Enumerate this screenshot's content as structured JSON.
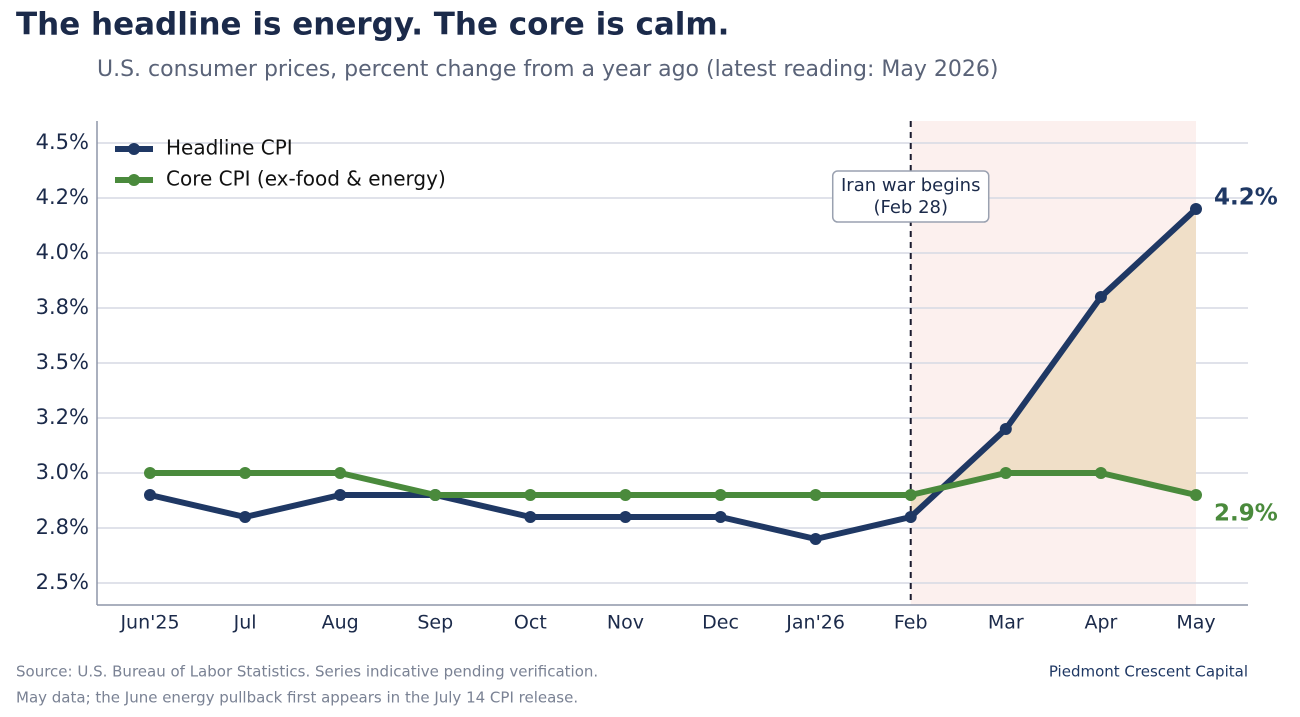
{
  "chart_data": {
    "type": "line",
    "title": "The headline is energy. The core is calm.",
    "subtitle": "U.S. consumer prices, percent change from a year ago (latest reading: May 2026)",
    "categories": [
      "Jun'25",
      "Jul",
      "Aug",
      "Sep",
      "Oct",
      "Nov",
      "Dec",
      "Jan'26",
      "Feb",
      "Mar",
      "Apr",
      "May"
    ],
    "series": [
      {
        "name": "Headline CPI",
        "color": "#1f3864",
        "values": [
          2.9,
          2.8,
          2.9,
          2.9,
          2.8,
          2.8,
          2.8,
          2.7,
          2.8,
          3.2,
          3.8,
          4.2
        ],
        "value_labels": [
          null,
          null,
          null,
          null,
          null,
          null,
          null,
          null,
          null,
          null,
          null,
          "4.2%"
        ]
      },
      {
        "name": "Core CPI (ex-food & energy)",
        "color": "#4a8a3c",
        "values": [
          3.0,
          3.0,
          3.0,
          2.9,
          2.9,
          2.9,
          2.9,
          2.9,
          2.9,
          3.0,
          3.0,
          2.9
        ],
        "value_labels": [
          null,
          null,
          null,
          null,
          null,
          null,
          null,
          null,
          null,
          null,
          null,
          "2.9%"
        ]
      }
    ],
    "ylim": [
      2.4,
      4.6
    ],
    "yticks": [
      {
        "value": 2.5,
        "label": "2.5%"
      },
      {
        "value": 2.75,
        "label": "2.8%"
      },
      {
        "value": 3.0,
        "label": "3.0%"
      },
      {
        "value": 3.25,
        "label": "3.2%"
      },
      {
        "value": 3.5,
        "label": "3.5%"
      },
      {
        "value": 3.75,
        "label": "3.8%"
      },
      {
        "value": 4.0,
        "label": "4.0%"
      },
      {
        "value": 4.25,
        "label": "4.2%"
      },
      {
        "value": 4.5,
        "label": "4.5%"
      }
    ],
    "grid": true,
    "legend": "upper-left",
    "annotation": {
      "text": [
        "Iran war begins",
        "(Feb 28)"
      ],
      "at": "Feb"
    },
    "shade": {
      "from": "Feb",
      "to": "May",
      "color": "#fcf0ee"
    },
    "gap_fill_color": "#f0dfc8",
    "source": [
      "Source: U.S. Bureau of Labor Statistics. Series indicative pending verification.",
      "May data; the June energy pullback first appears in the July 14 CPI release."
    ],
    "brand": "Piedmont Crescent Capital"
  }
}
